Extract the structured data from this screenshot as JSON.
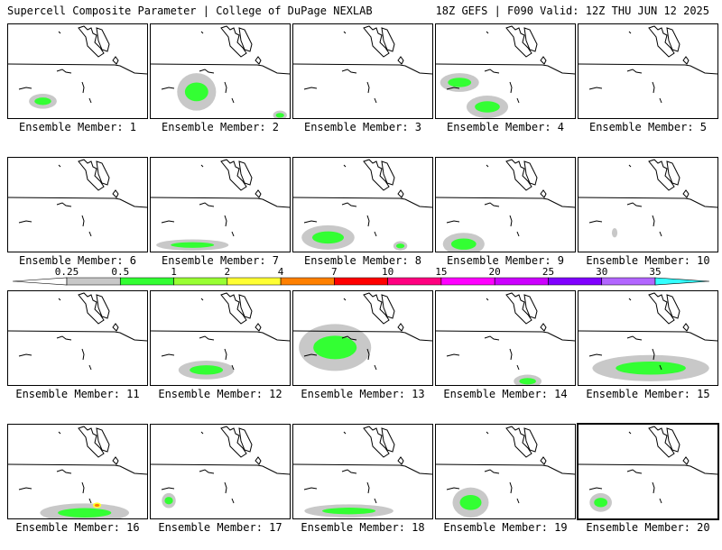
{
  "header": {
    "title_left": "Supercell Composite Parameter | College of DuPage NEXLAB",
    "title_right": "18Z GEFS | F090 Valid: 12Z THU JUN 12 2025"
  },
  "chart_data": {
    "type": "heatmap",
    "layout": "4x5 small multiples",
    "member_label_prefix": "Ensemble Member:",
    "members": [
      1,
      2,
      3,
      4,
      5,
      6,
      7,
      8,
      9,
      10,
      11,
      12,
      13,
      14,
      15,
      16,
      17,
      18,
      19,
      20
    ],
    "highlighted_member": 20,
    "colorbar": {
      "levels": [
        0.25,
        0.5,
        1,
        2,
        4,
        7,
        10,
        15,
        20,
        25,
        30,
        35
      ],
      "tick_labels": [
        "0.25",
        "0.5",
        "1",
        "2",
        "4",
        "7",
        "10",
        "15",
        "20",
        "25",
        "30",
        "35"
      ],
      "colors": [
        "#ffffff",
        "#c8c8c8",
        "#33ff33",
        "#99ff33",
        "#ffff33",
        "#ff8000",
        "#ff0000",
        "#ff0080",
        "#ff00ff",
        "#cc00ff",
        "#8000ff",
        "#b266ff",
        "#33ffff"
      ]
    },
    "panels": [
      {
        "member": 1,
        "blobs": [
          {
            "category": "0.25-0.5",
            "cx": 0.25,
            "cy": 0.82,
            "rx": 0.1,
            "ry": 0.08,
            "inner": "1-2"
          }
        ]
      },
      {
        "member": 2,
        "blobs": [
          {
            "category": "0.25-0.5",
            "cx": 0.33,
            "cy": 0.72,
            "rx": 0.14,
            "ry": 0.2,
            "inner": "1-2"
          },
          {
            "category": "0.25-0.5",
            "cx": 0.93,
            "cy": 0.97,
            "rx": 0.05,
            "ry": 0.05,
            "inner": "1-2"
          }
        ]
      },
      {
        "member": 3,
        "blobs": []
      },
      {
        "member": 4,
        "blobs": [
          {
            "category": "0.25-0.5",
            "cx": 0.17,
            "cy": 0.62,
            "rx": 0.14,
            "ry": 0.1,
            "inner": "1-2"
          },
          {
            "category": "0.25-0.5",
            "cx": 0.37,
            "cy": 0.88,
            "rx": 0.15,
            "ry": 0.12,
            "inner": "1-2"
          }
        ]
      },
      {
        "member": 5,
        "blobs": []
      },
      {
        "member": 6,
        "blobs": []
      },
      {
        "member": 7,
        "blobs": [
          {
            "category": "0.25-0.5",
            "cx": 0.3,
            "cy": 0.93,
            "rx": 0.26,
            "ry": 0.06,
            "inner": "1-2"
          }
        ]
      },
      {
        "member": 8,
        "blobs": [
          {
            "category": "0.25-0.5",
            "cx": 0.25,
            "cy": 0.85,
            "rx": 0.19,
            "ry": 0.13,
            "inner": "1-2"
          },
          {
            "category": "0.25-0.5",
            "cx": 0.77,
            "cy": 0.94,
            "rx": 0.05,
            "ry": 0.05,
            "inner": "1-2"
          }
        ]
      },
      {
        "member": 9,
        "blobs": [
          {
            "category": "0.25-0.5",
            "cx": 0.2,
            "cy": 0.92,
            "rx": 0.15,
            "ry": 0.12,
            "inner": "1-2"
          }
        ]
      },
      {
        "member": 10,
        "blobs": [
          {
            "category": "0.25-0.5",
            "cx": 0.26,
            "cy": 0.8,
            "rx": 0.02,
            "ry": 0.05,
            "inner": null
          }
        ]
      },
      {
        "member": 11,
        "blobs": []
      },
      {
        "member": 12,
        "blobs": [
          {
            "category": "0.25-0.5",
            "cx": 0.4,
            "cy": 0.84,
            "rx": 0.2,
            "ry": 0.1,
            "inner": "1-2"
          }
        ]
      },
      {
        "member": 13,
        "blobs": [
          {
            "category": "0.25-0.5",
            "cx": 0.3,
            "cy": 0.6,
            "rx": 0.26,
            "ry": 0.25,
            "inner": "1-2"
          }
        ]
      },
      {
        "member": 14,
        "blobs": [
          {
            "category": "0.25-0.5",
            "cx": 0.66,
            "cy": 0.96,
            "rx": 0.1,
            "ry": 0.07,
            "inner": "1-2"
          }
        ]
      },
      {
        "member": 15,
        "blobs": [
          {
            "category": "0.25-0.5",
            "cx": 0.52,
            "cy": 0.82,
            "rx": 0.42,
            "ry": 0.14,
            "inner": "1-2"
          }
        ]
      },
      {
        "member": 16,
        "blobs": [
          {
            "category": "0.25-0.5",
            "cx": 0.55,
            "cy": 0.94,
            "rx": 0.32,
            "ry": 0.1,
            "inner": "1-2"
          },
          {
            "category": "4-7",
            "cx": 0.64,
            "cy": 0.86,
            "rx": 0.03,
            "ry": 0.03,
            "inner": "7-10"
          }
        ]
      },
      {
        "member": 17,
        "blobs": [
          {
            "category": "0.25-0.5",
            "cx": 0.13,
            "cy": 0.81,
            "rx": 0.05,
            "ry": 0.08,
            "inner": "1-2"
          }
        ]
      },
      {
        "member": 18,
        "blobs": [
          {
            "category": "0.25-0.5",
            "cx": 0.4,
            "cy": 0.92,
            "rx": 0.32,
            "ry": 0.07,
            "inner": "1-2"
          }
        ]
      },
      {
        "member": 19,
        "blobs": [
          {
            "category": "0.25-0.5",
            "cx": 0.25,
            "cy": 0.83,
            "rx": 0.13,
            "ry": 0.16,
            "inner": "1-2"
          }
        ]
      },
      {
        "member": 20,
        "blobs": [
          {
            "category": "0.25-0.5",
            "cx": 0.16,
            "cy": 0.83,
            "rx": 0.08,
            "ry": 0.1,
            "inner": "1-2"
          }
        ]
      }
    ]
  }
}
